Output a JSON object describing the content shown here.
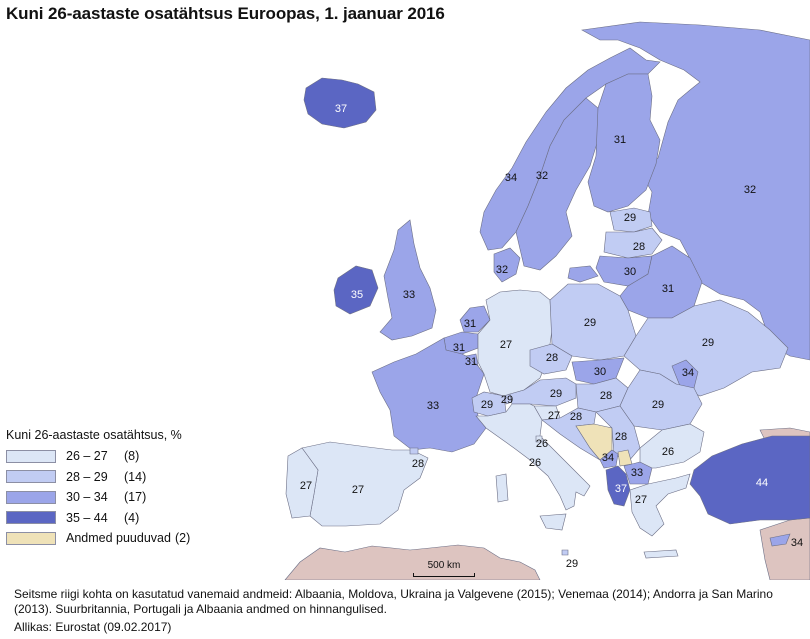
{
  "title": "Kuni 26-aastaste osatähtsus Euroopas, 1. jaanuar 2016",
  "legend": {
    "title": "Kuni 26-aastaste osatähtsus, %",
    "classes": [
      {
        "range": "26 – 27",
        "count": "(8)",
        "color": "#dce6f6"
      },
      {
        "range": "28 – 29",
        "count": "(14)",
        "color": "#c1ccf3"
      },
      {
        "range": "30 – 34",
        "count": "(17)",
        "color": "#9ba5e9"
      },
      {
        "range": "35 – 44",
        "count": "(4)",
        "color": "#5b66c3"
      },
      {
        "range": "Andmed puuduvad",
        "count": "(2)",
        "color": "#efe2b8"
      }
    ]
  },
  "colors": {
    "c26_27": "#dce6f6",
    "c28_29": "#c1ccf3",
    "c30_34": "#9ba5e9",
    "c35_44": "#5b66c3",
    "no_data": "#efe2b8",
    "non_europe": "#ddc4c0",
    "sea": "#ffffff",
    "border": "#6c6f86"
  },
  "values": [
    {
      "country": "Iceland",
      "value": "37"
    },
    {
      "country": "Norway",
      "value": "34"
    },
    {
      "country": "Sweden",
      "value": "32"
    },
    {
      "country": "Finland",
      "value": "31"
    },
    {
      "country": "Russia",
      "value": "32"
    },
    {
      "country": "Estonia",
      "value": "29"
    },
    {
      "country": "Latvia",
      "value": "28"
    },
    {
      "country": "Lithuania",
      "value": "30"
    },
    {
      "country": "Belarus",
      "value": "31"
    },
    {
      "country": "Denmark",
      "value": "32"
    },
    {
      "country": "Ireland",
      "value": "35"
    },
    {
      "country": "United Kingdom",
      "value": "33"
    },
    {
      "country": "Netherlands",
      "value": "31"
    },
    {
      "country": "Belgium",
      "value": "31"
    },
    {
      "country": "Luxembourg",
      "value": "31"
    },
    {
      "country": "Germany",
      "value": "27"
    },
    {
      "country": "Poland",
      "value": "29"
    },
    {
      "country": "Ukraine",
      "value": "29"
    },
    {
      "country": "Czechia",
      "value": "28"
    },
    {
      "country": "Slovakia",
      "value": "30"
    },
    {
      "country": "Moldova",
      "value": "34"
    },
    {
      "country": "France",
      "value": "33"
    },
    {
      "country": "Switzerland",
      "value": "29"
    },
    {
      "country": "Liechtenstein",
      "value": "29"
    },
    {
      "country": "Austria",
      "value": "29"
    },
    {
      "country": "Hungary",
      "value": "28"
    },
    {
      "country": "Romania",
      "value": "29"
    },
    {
      "country": "Slovenia",
      "value": "27"
    },
    {
      "country": "Croatia",
      "value": "28"
    },
    {
      "country": "Serbia",
      "value": "28"
    },
    {
      "country": "Bulgaria",
      "value": "26"
    },
    {
      "country": "San Marino",
      "value": "26"
    },
    {
      "country": "Italy",
      "value": "26"
    },
    {
      "country": "Montenegro",
      "value": "34"
    },
    {
      "country": "North Macedonia",
      "value": "33"
    },
    {
      "country": "Albania",
      "value": "37"
    },
    {
      "country": "Greece",
      "value": "27"
    },
    {
      "country": "Turkey",
      "value": "44"
    },
    {
      "country": "Cyprus",
      "value": "34"
    },
    {
      "country": "Malta",
      "value": "29"
    },
    {
      "country": "Portugal",
      "value": "27"
    },
    {
      "country": "Spain",
      "value": "27"
    },
    {
      "country": "Andorra",
      "value": "28"
    }
  ],
  "scalebar": {
    "label": "500 km"
  },
  "footnote": "Seitsme riigi kohta on kasutatud vanemaid andmeid: Albaania, Moldova, Ukraina ja Valgevene (2015); Venemaa (2014); Andorra ja San Marino (2013). Suurbritannia, Portugali ja Albaania andmed on hinnangulised.",
  "source": "Allikas: Eurostat (09.02.2017)"
}
